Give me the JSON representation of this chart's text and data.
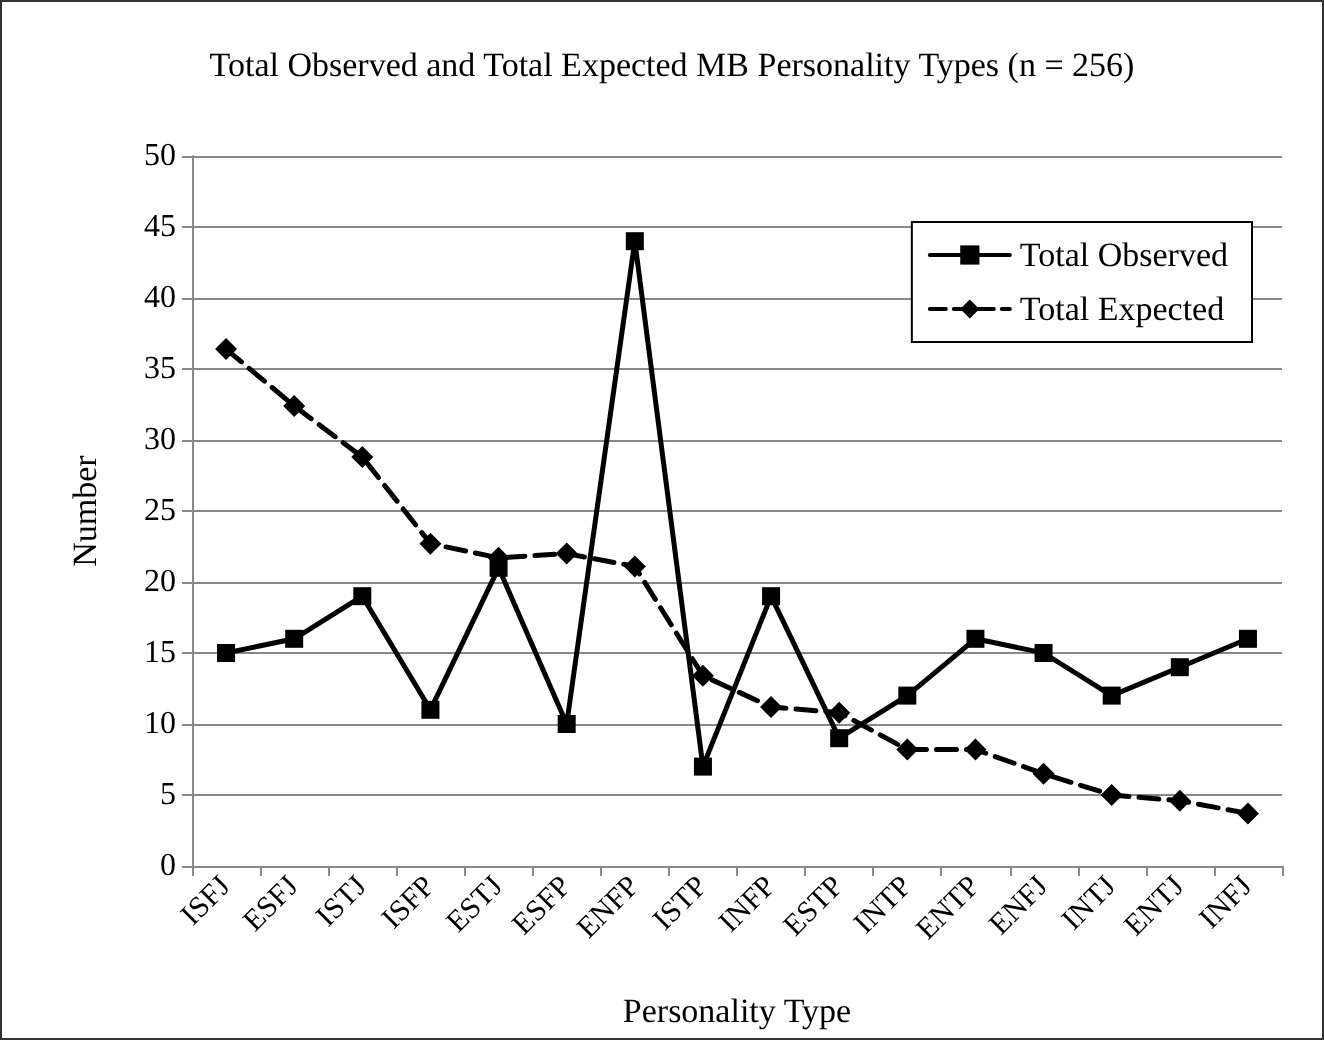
{
  "chart_data": {
    "type": "line",
    "title": "Total Observed and Total Expected MB Personality Types (n = 256)",
    "xlabel": "Personality Type",
    "ylabel": "Number",
    "categories": [
      "ISFJ",
      "ESFJ",
      "ISTJ",
      "ISFP",
      "ESTJ",
      "ESFP",
      "ENFP",
      "ISTP",
      "INFP",
      "ESTP",
      "INTP",
      "ENTP",
      "ENFJ",
      "INTJ",
      "ENTJ",
      "INFJ"
    ],
    "series": [
      {
        "name": "Total Observed",
        "color": "#000000",
        "marker": "square",
        "line_style": "solid",
        "values": [
          15,
          16,
          19,
          11,
          21,
          10,
          44,
          7,
          19,
          9,
          12,
          16,
          15,
          12,
          14,
          16
        ]
      },
      {
        "name": "Total Expected",
        "color": "#000000",
        "marker": "diamond",
        "line_style": "dashed",
        "values": [
          36.4,
          32.4,
          28.8,
          22.7,
          21.7,
          22.0,
          21.1,
          13.4,
          11.2,
          10.8,
          8.2,
          8.2,
          6.5,
          5.0,
          4.6,
          3.7
        ]
      }
    ],
    "ylim": [
      0,
      50
    ],
    "yticks": [
      0,
      5,
      10,
      15,
      20,
      25,
      30,
      35,
      40,
      45,
      50
    ],
    "grid": "y",
    "legend": "top right"
  }
}
